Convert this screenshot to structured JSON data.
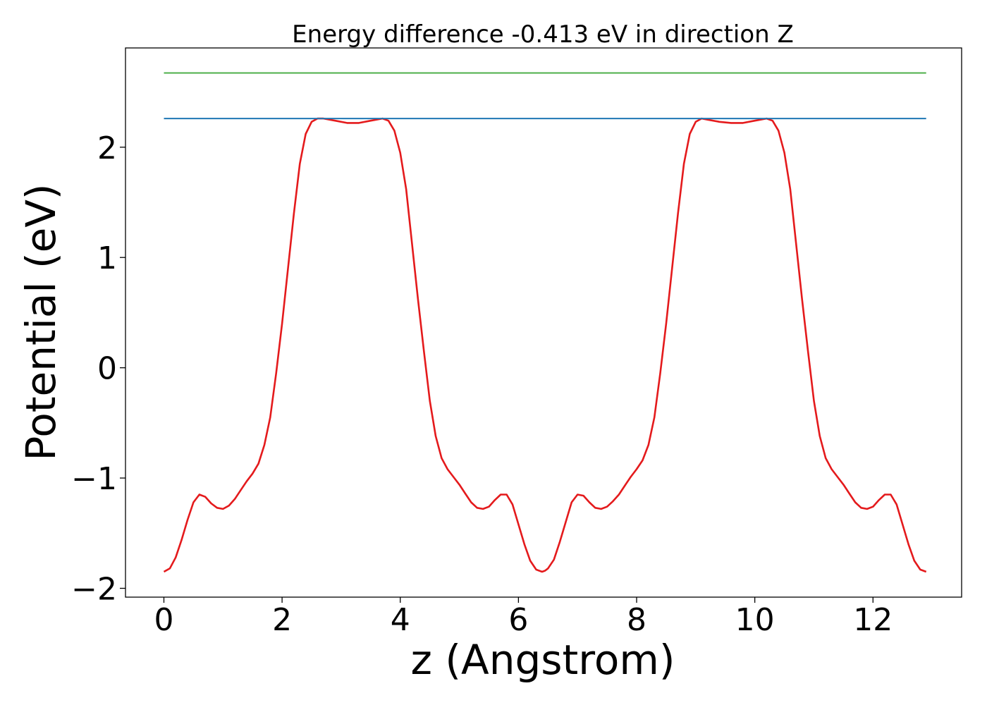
{
  "chart_data": {
    "type": "line",
    "title": "Energy difference -0.413 eV in direction Z",
    "xlabel": "z (Angstrom)",
    "ylabel": "Potential (eV)",
    "xlim": [
      -0.65,
      13.5
    ],
    "ylim": [
      -2.08,
      2.9
    ],
    "xticks": [
      0,
      2,
      4,
      6,
      8,
      10,
      12
    ],
    "xtick_labels": [
      "0",
      "2",
      "4",
      "6",
      "8",
      "10",
      "12"
    ],
    "yticks": [
      -2,
      -1,
      0,
      1,
      2
    ],
    "ytick_labels": [
      "−2",
      "−1",
      "0",
      "1",
      "2"
    ],
    "grid": false,
    "series": [
      {
        "color": "#e41a1c",
        "x": [
          0,
          0.1,
          0.2,
          0.3,
          0.4,
          0.5,
          0.6,
          0.7,
          0.8,
          0.9,
          1.0,
          1.1,
          1.2,
          1.3,
          1.4,
          1.5,
          1.6,
          1.7,
          1.8,
          1.9,
          2.0,
          2.1,
          2.2,
          2.3,
          2.4,
          2.5,
          2.6,
          2.7,
          2.9,
          3.1,
          3.3,
          3.5,
          3.7,
          3.8,
          3.9,
          4.0,
          4.1,
          4.2,
          4.3,
          4.4,
          4.5,
          4.6,
          4.7,
          4.8,
          4.9,
          5.0,
          5.1,
          5.2,
          5.3,
          5.4,
          5.5,
          5.6,
          5.7,
          5.8,
          5.9,
          6.0,
          6.1,
          6.2,
          6.3,
          6.4,
          6.45,
          6.5,
          6.6,
          6.7,
          6.8,
          6.9,
          7.0,
          7.1,
          7.2,
          7.3,
          7.4,
          7.5,
          7.6,
          7.7,
          7.8,
          7.9,
          8.0,
          8.1,
          8.2,
          8.3,
          8.4,
          8.5,
          8.6,
          8.7,
          8.8,
          8.9,
          9.0,
          9.1,
          9.2,
          9.4,
          9.6,
          9.8,
          10.0,
          10.2,
          10.3,
          10.4,
          10.5,
          10.6,
          10.7,
          10.8,
          10.9,
          11.0,
          11.1,
          11.2,
          11.3,
          11.4,
          11.5,
          11.6,
          11.7,
          11.8,
          11.9,
          12.0,
          12.1,
          12.2,
          12.3,
          12.4,
          12.5,
          12.6,
          12.7,
          12.8,
          12.9
        ],
        "y": [
          -1.85,
          -1.82,
          -1.72,
          -1.56,
          -1.38,
          -1.22,
          -1.15,
          -1.17,
          -1.23,
          -1.27,
          -1.28,
          -1.25,
          -1.19,
          -1.11,
          -1.03,
          -0.96,
          -0.87,
          -0.7,
          -0.45,
          -0.05,
          0.4,
          0.9,
          1.4,
          1.85,
          2.12,
          2.23,
          2.26,
          2.26,
          2.24,
          2.22,
          2.22,
          2.24,
          2.26,
          2.24,
          2.15,
          1.95,
          1.62,
          1.12,
          0.62,
          0.15,
          -0.3,
          -0.62,
          -0.82,
          -0.92,
          -0.99,
          -1.06,
          -1.14,
          -1.22,
          -1.27,
          -1.28,
          -1.26,
          -1.2,
          -1.15,
          -1.15,
          -1.24,
          -1.42,
          -1.6,
          -1.75,
          -1.83,
          -1.85,
          -1.84,
          -1.82,
          -1.74,
          -1.58,
          -1.4,
          -1.22,
          -1.15,
          -1.16,
          -1.22,
          -1.27,
          -1.28,
          -1.26,
          -1.21,
          -1.15,
          -1.07,
          -0.99,
          -0.92,
          -0.84,
          -0.7,
          -0.45,
          -0.05,
          0.4,
          0.9,
          1.4,
          1.85,
          2.12,
          2.23,
          2.26,
          2.25,
          2.23,
          2.22,
          2.22,
          2.24,
          2.26,
          2.24,
          2.15,
          1.95,
          1.62,
          1.12,
          0.62,
          0.15,
          -0.3,
          -0.62,
          -0.82,
          -0.92,
          -0.99,
          -1.06,
          -1.14,
          -1.22,
          -1.27,
          -1.28,
          -1.26,
          -1.2,
          -1.15,
          -1.15,
          -1.24,
          -1.42,
          -1.6,
          -1.75,
          -1.83,
          -1.85
        ]
      },
      {
        "color": "#1f77b4",
        "x": [
          0,
          12.9
        ],
        "y": [
          2.26,
          2.26
        ]
      },
      {
        "color": "#4daf4a",
        "x": [
          0,
          12.9
        ],
        "y": [
          2.673,
          2.673
        ]
      }
    ]
  }
}
